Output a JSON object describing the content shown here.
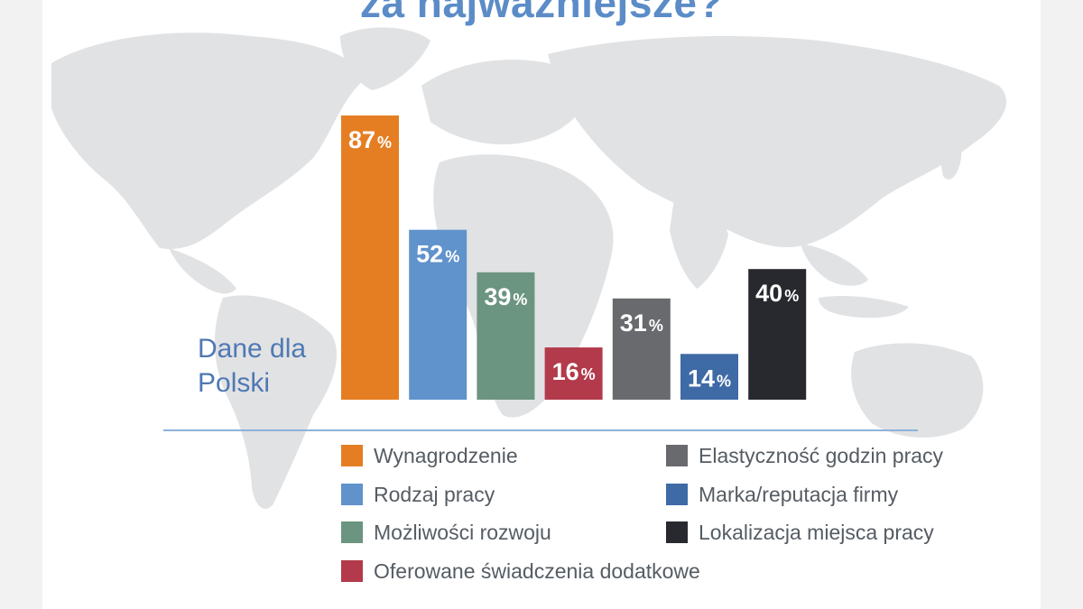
{
  "header": {
    "title": "za najważniejsze?"
  },
  "side_label": {
    "line1": "Dane dla",
    "line2": "Polski"
  },
  "colors": {
    "orange": "#e57e22",
    "light_blue": "#6092cc",
    "green": "#6b9481",
    "red": "#b23a4b",
    "gray": "#696a6e",
    "blue": "#3e6aa5",
    "black": "#27292f",
    "title": "#5b8cc8",
    "map": "#e1e2e4"
  },
  "chart_data": {
    "type": "bar",
    "title": "za najważniejsze?",
    "xlabel": "",
    "ylabel": "",
    "ylim": [
      0,
      87
    ],
    "grid": false,
    "legend": "bottom",
    "value_suffix": "%",
    "categories": [
      "Wynagrodzenie",
      "Rodzaj pracy",
      "Możliwości rozwoju",
      "Oferowane świadczenia dodatkowe",
      "Elastyczność godzin pracy",
      "Marka/reputacja firmy",
      "Lokalizacja miejsca pracy"
    ],
    "values": [
      87,
      52,
      39,
      16,
      31,
      14,
      40
    ],
    "value_labels": [
      "87",
      "52",
      "39",
      "16",
      "31",
      "14",
      "40"
    ],
    "colors": [
      "#e57e22",
      "#6092cc",
      "#6b9481",
      "#b23a4b",
      "#696a6e",
      "#3e6aa5",
      "#27292f"
    ]
  },
  "legend": {
    "items": [
      {
        "label": "Wynagrodzenie",
        "color": "#e57e22"
      },
      {
        "label": "Rodzaj pracy",
        "color": "#6092cc"
      },
      {
        "label": "Możliwości rozwoju",
        "color": "#6b9481"
      },
      {
        "label": "Oferowane świadczenia dodatkowe",
        "color": "#b23a4b"
      },
      {
        "label": "Elastyczność godzin pracy",
        "color": "#696a6e"
      },
      {
        "label": "Marka/reputacja firmy",
        "color": "#3e6aa5"
      },
      {
        "label": "Lokalizacja miejsca pracy",
        "color": "#27292f"
      }
    ]
  }
}
